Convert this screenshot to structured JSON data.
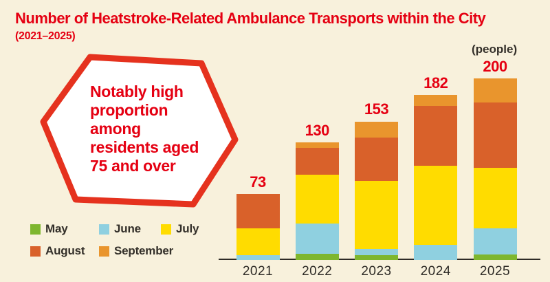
{
  "title": "Number of Heatstroke-Related Ambulance Transports within the City",
  "subtitle": "(2021–2025)",
  "unit_label": "(people)",
  "callout": {
    "lines": [
      "Notably high",
      "proportion",
      "among",
      "residents aged",
      "75 and over"
    ]
  },
  "colors": {
    "accent_red": "#e50012",
    "hexagon_border": "#e5321e",
    "background": "#f8f1dc",
    "axis": "#2e2b26"
  },
  "chart_data": {
    "type": "bar",
    "stacked": true,
    "title": "Number of Heatstroke-Related Ambulance Transports within the City (2021–2025)",
    "xlabel": "",
    "ylabel": "people",
    "grid": false,
    "legend_position": "bottom-left",
    "categories": [
      "2021",
      "2022",
      "2023",
      "2024",
      "2025"
    ],
    "series": [
      {
        "name": "May",
        "color": "#7eb62e",
        "values": [
          0,
          7,
          5,
          0,
          6
        ]
      },
      {
        "name": "June",
        "color": "#8fd0e0",
        "values": [
          5,
          33,
          7,
          17,
          29
        ]
      },
      {
        "name": "July",
        "color": "#ffdc00",
        "values": [
          30,
          54,
          75,
          87,
          67
        ]
      },
      {
        "name": "August",
        "color": "#d9612a",
        "values": [
          38,
          30,
          48,
          66,
          72
        ]
      },
      {
        "name": "September",
        "color": "#e9952d",
        "values": [
          0,
          6,
          18,
          12,
          26
        ]
      }
    ],
    "totals": [
      73,
      130,
      153,
      182,
      200
    ]
  }
}
